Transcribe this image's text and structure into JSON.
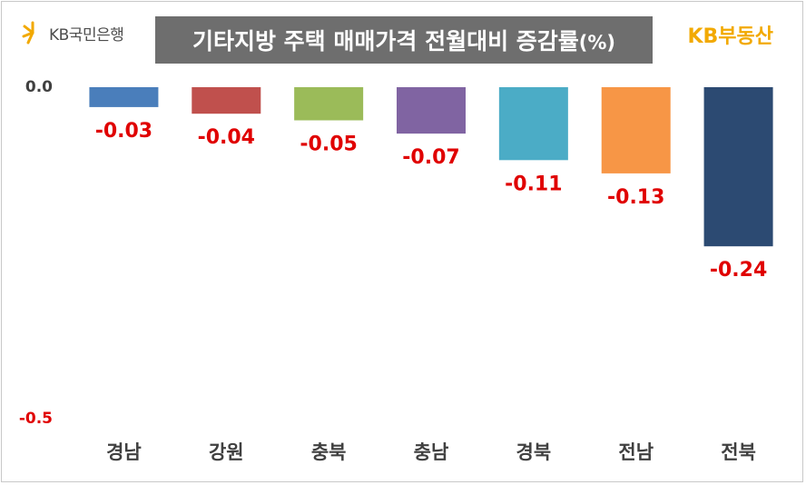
{
  "header": {
    "bank_logo_text": "KB국민은행",
    "title": "기타지방 주택 매매가격 전월대비 증감률",
    "title_unit": "(%)",
    "brand": "KB부동산"
  },
  "colors": {
    "title_bg": "#6e6e6e",
    "label_red": "#e00000",
    "brand_yellow": "#f2a900"
  },
  "chart_data": {
    "type": "bar",
    "title": "기타지방 주택 매매가격 전월대비 증감률(%)",
    "categories": [
      "경남",
      "강원",
      "충북",
      "충남",
      "경북",
      "전남",
      "전북"
    ],
    "values": [
      -0.03,
      -0.04,
      -0.05,
      -0.07,
      -0.11,
      -0.13,
      -0.24
    ],
    "value_labels": [
      "-0.03",
      "-0.04",
      "-0.05",
      "-0.07",
      "-0.11",
      "-0.13",
      "-0.24"
    ],
    "bar_colors": [
      "#4a7ebb",
      "#c0504d",
      "#9bbb59",
      "#8064a2",
      "#4bacc6",
      "#f79646",
      "#2c4a72"
    ],
    "yticks": [
      {
        "value": 0.0,
        "label": "0.0"
      },
      {
        "value": -0.5,
        "label": "-0.5"
      }
    ],
    "ylim": [
      -0.5,
      0.0
    ],
    "xlabel": "",
    "ylabel": "",
    "grid": false,
    "legend": "none"
  }
}
